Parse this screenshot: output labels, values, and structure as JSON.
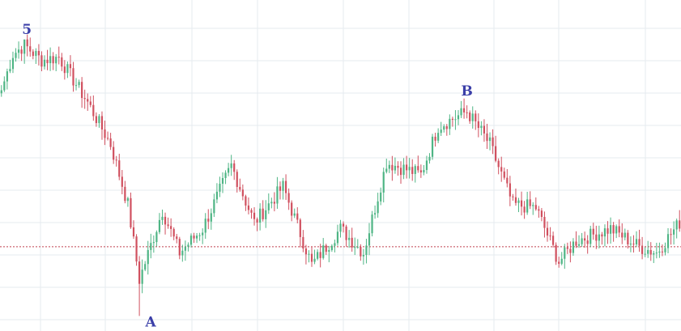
{
  "chart_data": {
    "type": "candlestick",
    "grid": true,
    "colors": {
      "up": "#4fb585",
      "down": "#d0505f",
      "reference_line": "#c0404f"
    },
    "reference_level": 98,
    "ylim": [
      70,
      180
    ],
    "wave_labels": [
      {
        "text": "5",
        "index": 8,
        "at": "high"
      },
      {
        "text": "A",
        "index": 48,
        "at": "low"
      },
      {
        "text": "B",
        "index": 162,
        "at": "high"
      }
    ],
    "pivots": [
      [
        0,
        150
      ],
      [
        4,
        162
      ],
      [
        8,
        165
      ],
      [
        14,
        160
      ],
      [
        20,
        161
      ],
      [
        30,
        146
      ],
      [
        38,
        132
      ],
      [
        44,
        112
      ],
      [
        48,
        87
      ],
      [
        56,
        110
      ],
      [
        62,
        96
      ],
      [
        70,
        104
      ],
      [
        80,
        125
      ],
      [
        88,
        106
      ],
      [
        98,
        118
      ],
      [
        108,
        92
      ],
      [
        118,
        104
      ],
      [
        126,
        96
      ],
      [
        134,
        126
      ],
      [
        146,
        122
      ],
      [
        152,
        138
      ],
      [
        162,
        143
      ],
      [
        170,
        132
      ],
      [
        178,
        112
      ],
      [
        186,
        111
      ],
      [
        194,
        93
      ],
      [
        200,
        100
      ],
      [
        212,
        104
      ],
      [
        222,
        98
      ],
      [
        228,
        96
      ],
      [
        236,
        106
      ]
    ]
  }
}
